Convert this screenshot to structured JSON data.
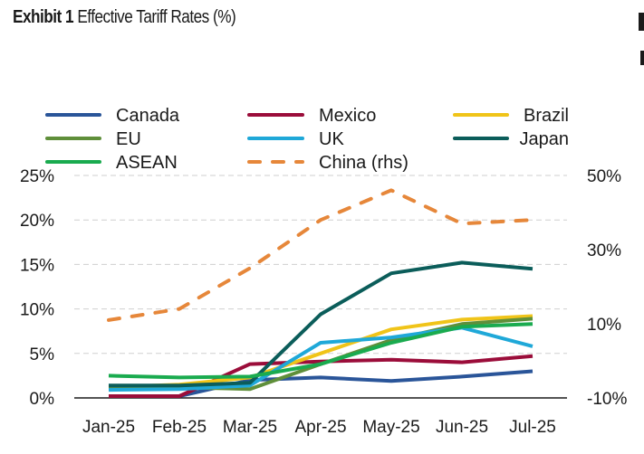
{
  "header": {
    "exhibit_label": "Exhibit 1",
    "title": "Effective Tariff Rates (%)"
  },
  "chart_data": {
    "type": "line",
    "title": "Effective Tariff Rates (%)",
    "xlabel": "",
    "ylabel": "",
    "categories": [
      "Jan-25",
      "Feb-25",
      "Mar-25",
      "Apr-25",
      "May-25",
      "Jun-25",
      "Jul-25"
    ],
    "y_left": {
      "range": [
        0,
        25
      ],
      "ticks": [
        0,
        5,
        10,
        15,
        20,
        25
      ],
      "tick_labels": [
        "0%",
        "5%",
        "10%",
        "15%",
        "20%",
        "25%"
      ]
    },
    "y_right": {
      "range": [
        -10,
        50
      ],
      "ticks": [
        -10,
        10,
        30,
        50
      ],
      "tick_labels": [
        "-10%",
        "10%",
        "30%",
        "50%"
      ]
    },
    "grid": true,
    "legend_position": "top",
    "series": [
      {
        "name": "Canada",
        "axis": "left",
        "color": "#2a5599",
        "dash": false,
        "values": [
          0.2,
          0.2,
          2.0,
          2.3,
          1.9,
          2.4,
          3.0
        ]
      },
      {
        "name": "Mexico",
        "axis": "left",
        "color": "#9b0d3a",
        "dash": false,
        "values": [
          0.2,
          0.2,
          3.8,
          4.1,
          4.3,
          4.0,
          4.7
        ]
      },
      {
        "name": "Brazil",
        "axis": "left",
        "color": "#f0c419",
        "dash": false,
        "values": [
          1.2,
          1.5,
          2.3,
          5.0,
          7.7,
          8.8,
          9.2
        ]
      },
      {
        "name": "EU",
        "axis": "left",
        "color": "#5f8f3a",
        "dash": false,
        "values": [
          1.2,
          1.2,
          1.0,
          3.8,
          6.5,
          8.3,
          8.9
        ]
      },
      {
        "name": "UK",
        "axis": "left",
        "color": "#1fa8d8",
        "dash": false,
        "values": [
          0.9,
          1.0,
          1.4,
          6.2,
          6.8,
          7.9,
          5.8
        ]
      },
      {
        "name": "Japan",
        "axis": "left",
        "color": "#0b5d5a",
        "dash": false,
        "values": [
          1.4,
          1.4,
          1.7,
          9.4,
          14.0,
          15.2,
          14.5
        ]
      },
      {
        "name": "ASEAN",
        "axis": "left",
        "color": "#1aab4f",
        "dash": false,
        "values": [
          2.5,
          2.3,
          2.4,
          3.8,
          6.2,
          8.0,
          8.3
        ]
      },
      {
        "name": "China (rhs)",
        "axis": "right",
        "color": "#e6873a",
        "dash": true,
        "values": [
          11,
          14,
          25,
          38,
          46,
          37,
          38
        ]
      }
    ]
  }
}
